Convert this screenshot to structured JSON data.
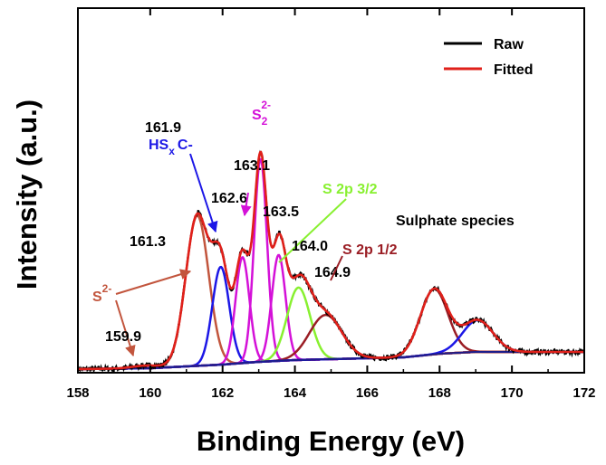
{
  "chart_data": {
    "type": "line",
    "title": "",
    "xlabel": "Binding Energy (eV)",
    "ylabel": "Intensity (a.u.)",
    "xlim": [
      158,
      172
    ],
    "x_ticks": [
      "158",
      "160",
      "162",
      "164",
      "166",
      "168",
      "170",
      "172"
    ],
    "legend": [
      {
        "name": "Raw",
        "color": "#000000"
      },
      {
        "name": "Fitted",
        "color": "#e0201a"
      }
    ],
    "baseline": [
      [
        158,
        4
      ],
      [
        160,
        5
      ],
      [
        161,
        7
      ],
      [
        162,
        9
      ],
      [
        163,
        12
      ],
      [
        164,
        14
      ],
      [
        165,
        15
      ],
      [
        166,
        16
      ],
      [
        167,
        17
      ],
      [
        168,
        21
      ],
      [
        169,
        23
      ],
      [
        170,
        23
      ],
      [
        172,
        23
      ]
    ],
    "peaks": [
      {
        "name": "159.9",
        "center": 159.9,
        "height": 3,
        "fwhm": 0.9,
        "color": "#c2553d"
      },
      {
        "name": "161.3",
        "center": 161.3,
        "height": 166,
        "fwhm": 0.75,
        "color": "#c2553d"
      },
      {
        "name": "161.9",
        "center": 161.95,
        "height": 108,
        "fwhm": 0.55,
        "color": "#1c17e6"
      },
      {
        "name": "162.6",
        "center": 162.55,
        "height": 117,
        "fwhm": 0.45,
        "color": "#d411d8"
      },
      {
        "name": "163.1",
        "center": 163.05,
        "height": 224,
        "fwhm": 0.42,
        "color": "#d411d8"
      },
      {
        "name": "163.5",
        "center": 163.55,
        "height": 117,
        "fwhm": 0.45,
        "color": "#d411d8"
      },
      {
        "name": "164.0",
        "center": 164.1,
        "height": 80,
        "fwhm": 0.75,
        "color": "#88f030"
      },
      {
        "name": "164.9",
        "center": 164.85,
        "height": 49,
        "fwhm": 1.05,
        "color": "#9a1d24"
      },
      {
        "name": "Sulphate 1",
        "center": 167.85,
        "height": 72,
        "fwhm": 0.9,
        "color": "#9a1d24"
      },
      {
        "name": "Sulphate 2",
        "center": 169.05,
        "height": 35,
        "fwhm": 1.0,
        "color": "#1c17e6"
      }
    ]
  },
  "annotations": {
    "l_1619": "161.9",
    "l_hsxc": "HS",
    "l_hsxc_sub": "x",
    "l_hsxc_tail": "C-",
    "l_s22": "S",
    "l_s22_sub": "2",
    "l_s22_sup": "2-",
    "l_1631": "163.1",
    "l_1626": "162.6",
    "l_1635": "163.5",
    "l_s2p32": "S 2p 3/2",
    "l_1640": "164.0",
    "l_s2p12": "S 2p 1/2",
    "l_1649": "164.9",
    "l_sulphate": "Sulphate species",
    "l_1613": "161.3",
    "l_s2minus": "S",
    "l_s2minus_sup": "2-",
    "l_1599": "159.9"
  },
  "colors": {
    "raw": "#000000",
    "fitted": "#e0201a",
    "red_brown": "#c2553d",
    "blue": "#1c17e6",
    "magenta": "#d411d8",
    "green": "#88f030",
    "dark_red": "#9a1d24"
  }
}
